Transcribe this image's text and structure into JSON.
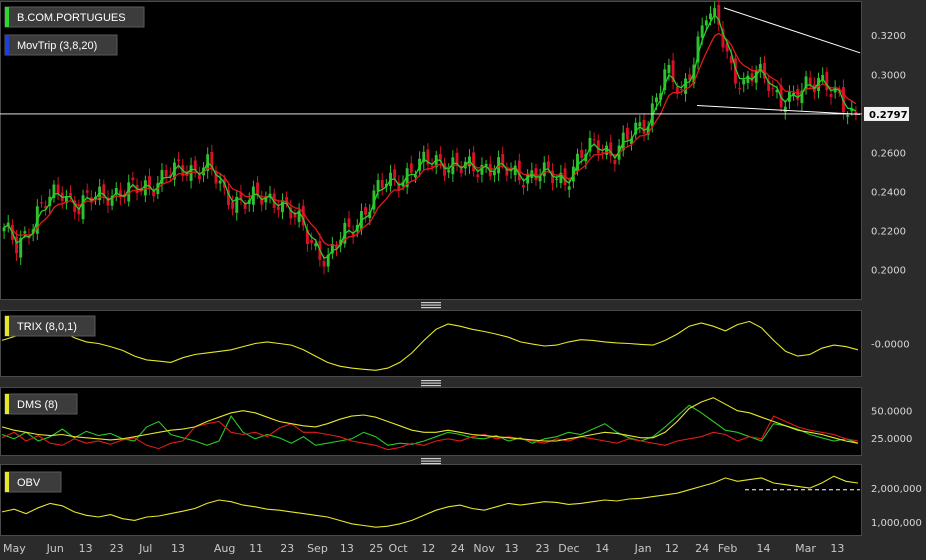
{
  "colors": {
    "up": "#2fc12f",
    "down": "#d8102a",
    "green_ma": "#27d127",
    "red_ma": "#e01b1b",
    "trix": "#e6e62a",
    "dms_plus": "#27c927",
    "dms_minus": "#e01b1b",
    "dms_adx": "#e6e62a",
    "obv": "#e6e62a",
    "trend": "#ffffff",
    "legend_green": "#2fd62f",
    "legend_blue": "#1f3fd8",
    "legend_yellow": "#e6e62a"
  },
  "chart_data": [
    {
      "type": "candlestick",
      "title": "B.COM.PORTUGUES",
      "indicator_label": "MovTrip (3,8,20)",
      "ylim": [
        0.185,
        0.337
      ],
      "y_ticks": [
        "0.2000",
        "0.2200",
        "0.2400",
        "0.2600",
        "0.3000",
        "0.3200"
      ],
      "y_tick_values": [
        0.2,
        0.22,
        0.24,
        0.26,
        0.3,
        0.32
      ],
      "last_price": "0.2797",
      "last_price_value": 0.2797,
      "anchor_points": [
        [
          0,
          0.219
        ],
        [
          3,
          0.212
        ],
        [
          8,
          0.229
        ],
        [
          14,
          0.241
        ],
        [
          18,
          0.232
        ],
        [
          25,
          0.24
        ],
        [
          30,
          0.239
        ],
        [
          37,
          0.246
        ],
        [
          44,
          0.252
        ],
        [
          49,
          0.253
        ],
        [
          53,
          0.238
        ],
        [
          59,
          0.235
        ],
        [
          66,
          0.237
        ],
        [
          71,
          0.223
        ],
        [
          75,
          0.212
        ],
        [
          78,
          0.205
        ],
        [
          82,
          0.218
        ],
        [
          87,
          0.231
        ],
        [
          92,
          0.245
        ],
        [
          98,
          0.25
        ],
        [
          104,
          0.257
        ],
        [
          110,
          0.251
        ],
        [
          116,
          0.254
        ],
        [
          122,
          0.249
        ],
        [
          128,
          0.249
        ],
        [
          132,
          0.247
        ],
        [
          135,
          0.247
        ],
        [
          139,
          0.258
        ],
        [
          143,
          0.264
        ],
        [
          147,
          0.26
        ],
        [
          151,
          0.268
        ],
        [
          155,
          0.278
        ],
        [
          159,
          0.3
        ],
        [
          163,
          0.29
        ],
        [
          166,
          0.31
        ],
        [
          169,
          0.33
        ],
        [
          172,
          0.325
        ],
        [
          175,
          0.305
        ],
        [
          178,
          0.293
        ],
        [
          181,
          0.3
        ],
        [
          184,
          0.298
        ],
        [
          187,
          0.287
        ],
        [
          190,
          0.285
        ],
        [
          193,
          0.295
        ],
        [
          196,
          0.3
        ],
        [
          199,
          0.29
        ],
        [
          202,
          0.283
        ],
        [
          205,
          0.279
        ]
      ],
      "trend_upper": [
        [
          724,
          0.334
        ],
        [
          860,
          0.311
        ]
      ],
      "trend_lower": [
        [
          697,
          0.284
        ],
        [
          860,
          0.2795
        ]
      ]
    },
    {
      "type": "line",
      "title": "TRIX (8,0,1)",
      "y_ticks": [
        "-0.0000"
      ],
      "y_tick_values": [
        0
      ],
      "ylim": [
        -1,
        1
      ],
      "values": [
        0.1,
        0.22,
        0.35,
        0.5,
        0.62,
        0.4,
        0.18,
        0.05,
        0.0,
        -0.1,
        -0.22,
        -0.4,
        -0.52,
        -0.56,
        -0.6,
        -0.45,
        -0.35,
        -0.3,
        -0.25,
        -0.2,
        -0.1,
        0.0,
        0.05,
        0.0,
        -0.05,
        -0.2,
        -0.4,
        -0.6,
        -0.72,
        -0.78,
        -0.82,
        -0.85,
        -0.78,
        -0.6,
        -0.3,
        0.1,
        0.45,
        0.62,
        0.55,
        0.45,
        0.38,
        0.3,
        0.2,
        0.05,
        -0.02,
        -0.08,
        -0.05,
        0.05,
        0.12,
        0.1,
        0.05,
        0.02,
        0.0,
        -0.03,
        -0.05,
        0.1,
        0.3,
        0.55,
        0.65,
        0.55,
        0.4,
        0.6,
        0.7,
        0.5,
        0.1,
        -0.25,
        -0.4,
        -0.35,
        -0.15,
        -0.05,
        -0.1,
        -0.2
      ]
    },
    {
      "type": "line",
      "title": "DMS (8)",
      "y_ticks": [
        "25.0000",
        "50.0000"
      ],
      "y_tick_values": [
        25,
        50
      ],
      "ylim": [
        10,
        70
      ],
      "series": [
        {
          "role": "plus",
          "values": [
            28,
            24,
            30,
            22,
            26,
            33,
            25,
            31,
            27,
            29,
            24,
            22,
            35,
            40,
            28,
            25,
            22,
            18,
            22,
            45,
            30,
            24,
            28,
            25,
            20,
            26,
            18,
            20,
            22,
            24,
            30,
            26,
            18,
            20,
            19,
            22,
            26,
            30,
            28,
            25,
            24,
            27,
            22,
            25,
            20,
            24,
            26,
            30,
            28,
            33,
            38,
            30,
            25,
            22,
            26,
            35,
            45,
            55,
            48,
            40,
            32,
            30,
            26,
            22,
            38,
            36,
            33,
            28,
            25,
            22,
            24,
            20
          ]
        },
        {
          "role": "minus",
          "values": [
            25,
            30,
            22,
            27,
            20,
            18,
            24,
            20,
            22,
            19,
            23,
            25,
            18,
            15,
            20,
            22,
            35,
            38,
            40,
            30,
            28,
            30,
            26,
            34,
            38,
            30,
            30,
            28,
            26,
            22,
            20,
            18,
            14,
            16,
            20,
            18,
            22,
            24,
            22,
            26,
            28,
            24,
            26,
            24,
            22,
            20,
            24,
            22,
            26,
            24,
            22,
            20,
            24,
            22,
            20,
            18,
            22,
            24,
            26,
            30,
            28,
            22,
            26,
            24,
            45,
            40,
            35,
            32,
            30,
            28,
            24,
            22
          ]
        },
        {
          "role": "adx",
          "values": [
            35,
            32,
            30,
            28,
            27,
            28,
            26,
            25,
            24,
            23,
            24,
            26,
            28,
            30,
            32,
            33,
            35,
            40,
            44,
            48,
            50,
            48,
            44,
            40,
            38,
            36,
            35,
            38,
            42,
            45,
            46,
            44,
            40,
            36,
            32,
            30,
            30,
            32,
            30,
            28,
            27,
            26,
            25,
            24,
            23,
            22,
            22,
            24,
            26,
            28,
            30,
            29,
            27,
            25,
            25,
            30,
            40,
            52,
            58,
            62,
            56,
            50,
            48,
            44,
            40,
            36,
            32,
            30,
            28,
            25,
            22,
            20
          ]
        }
      ]
    },
    {
      "type": "line",
      "title": "OBV",
      "y_ticks": [
        "1,000,000",
        "2,000,000"
      ],
      "y_tick_values": [
        1000000,
        2000000
      ],
      "ylim": [
        650000,
        2650000
      ],
      "values": [
        1300000,
        1380000,
        1250000,
        1420000,
        1550000,
        1480000,
        1300000,
        1200000,
        1150000,
        1220000,
        1100000,
        1050000,
        1150000,
        1180000,
        1250000,
        1320000,
        1400000,
        1550000,
        1650000,
        1600000,
        1500000,
        1450000,
        1380000,
        1350000,
        1300000,
        1250000,
        1200000,
        1150000,
        1050000,
        950000,
        900000,
        850000,
        880000,
        950000,
        1050000,
        1200000,
        1350000,
        1450000,
        1500000,
        1400000,
        1350000,
        1450000,
        1550000,
        1500000,
        1550000,
        1600000,
        1580000,
        1520000,
        1550000,
        1600000,
        1650000,
        1620000,
        1680000,
        1700000,
        1750000,
        1800000,
        1850000,
        1950000,
        2050000,
        2150000,
        2300000,
        2200000,
        2250000,
        2300000,
        2150000,
        2100000,
        2050000,
        2000000,
        2150000,
        2350000,
        2200000,
        2150000
      ],
      "ref_level": 1950000
    }
  ],
  "x_axis": {
    "labels": [
      "May",
      "Jun",
      "13",
      "23",
      "Jul",
      "13",
      "Aug",
      "11",
      "23",
      "Sep",
      "13",
      "25",
      "Oct",
      "12",
      "24",
      "Nov",
      "13",
      "23",
      "Dec",
      "14",
      "Jan",
      "12",
      "24",
      "Feb",
      "14",
      "Mar",
      "13"
    ],
    "positions": [
      0.0,
      0.052,
      0.09,
      0.127,
      0.162,
      0.2,
      0.251,
      0.293,
      0.33,
      0.362,
      0.401,
      0.436,
      0.459,
      0.498,
      0.533,
      0.56,
      0.597,
      0.634,
      0.661,
      0.705,
      0.752,
      0.788,
      0.824,
      0.851,
      0.897,
      0.943,
      0.985
    ]
  }
}
